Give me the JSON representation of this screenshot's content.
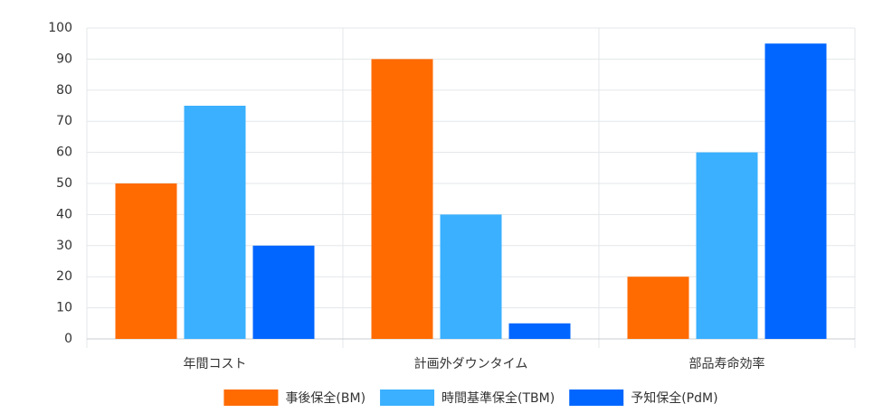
{
  "chart_data": {
    "type": "bar",
    "categories": [
      "年間コスト",
      "計画外ダウンタイム",
      "部品寿命効率"
    ],
    "series": [
      {
        "name": "事後保全(BM)",
        "color": "#ff6b00",
        "values": [
          50,
          90,
          20
        ]
      },
      {
        "name": "時間基準保全(TBM)",
        "color": "#3ab0ff",
        "values": [
          75,
          40,
          60
        ]
      },
      {
        "name": "予知保全(PdM)",
        "color": "#0066ff",
        "values": [
          30,
          5,
          95
        ]
      }
    ],
    "ylim": [
      0,
      100
    ],
    "yticks": [
      0,
      10,
      20,
      30,
      40,
      50,
      60,
      70,
      80,
      90,
      100
    ],
    "grid": true,
    "legend": "bottom"
  }
}
